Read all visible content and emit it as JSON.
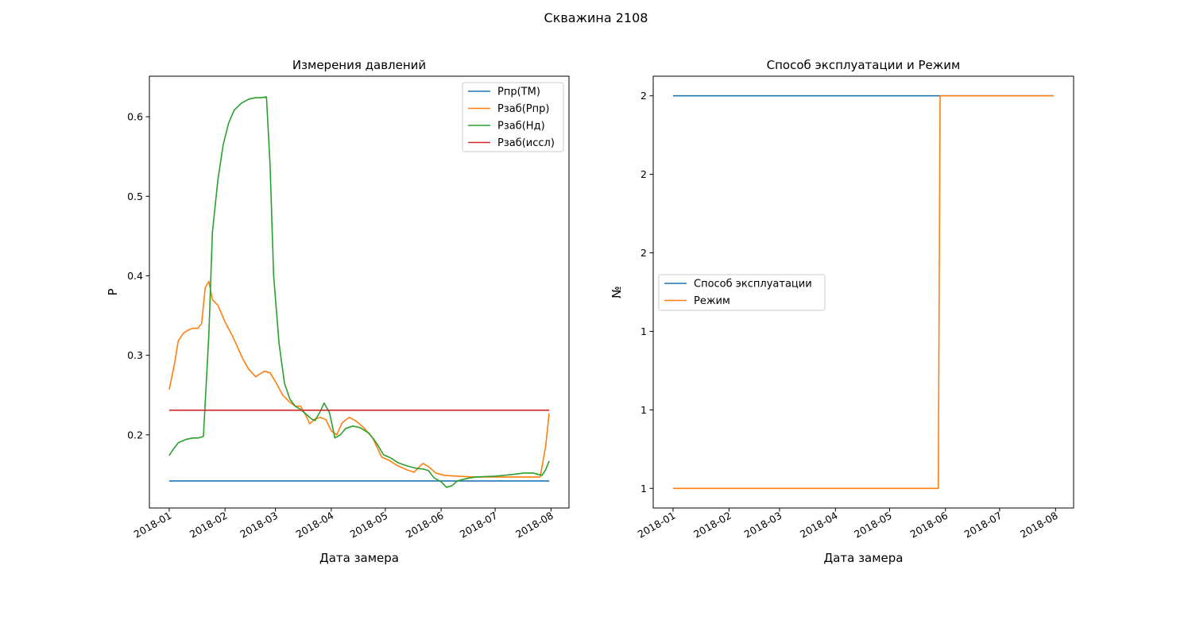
{
  "figure": {
    "suptitle": "Скважина 2108"
  },
  "chart_data": [
    {
      "type": "line",
      "title": "Измерения давлений",
      "xlabel": "Дата замера",
      "ylabel": "P",
      "x_type": "date",
      "xlim": [
        "2017-12-21",
        "2018-08-11"
      ],
      "ylim": [
        0.108,
        0.651
      ],
      "xticks": [
        "2018-01-01",
        "2018-02-01",
        "2018-03-01",
        "2018-04-01",
        "2018-05-01",
        "2018-06-01",
        "2018-07-01",
        "2018-08-01"
      ],
      "xtick_labels": [
        "2018-01",
        "2018-02",
        "2018-03",
        "2018-04",
        "2018-05",
        "2018-06",
        "2018-07",
        "2018-08"
      ],
      "yticks": [
        0.2,
        0.3,
        0.4,
        0.5,
        0.6
      ],
      "ytick_labels": [
        "0.2",
        "0.3",
        "0.4",
        "0.5",
        "0.6"
      ],
      "legend": "top-right",
      "grid": false,
      "series": [
        {
          "name": "Рпр(ТМ)",
          "color": "#1f77b4",
          "points": [
            [
              "2018-01-01",
              0.142
            ],
            [
              "2018-07-31",
              0.142
            ]
          ]
        },
        {
          "name": "Рзаб(Рпр)",
          "color": "#ff7f0e",
          "points": [
            [
              "2018-01-01",
              0.257
            ],
            [
              "2018-01-04",
              0.29
            ],
            [
              "2018-01-06",
              0.318
            ],
            [
              "2018-01-09",
              0.328
            ],
            [
              "2018-01-11",
              0.331
            ],
            [
              "2018-01-14",
              0.334
            ],
            [
              "2018-01-17",
              0.334
            ],
            [
              "2018-01-19",
              0.34
            ],
            [
              "2018-01-21",
              0.385
            ],
            [
              "2018-01-23",
              0.393
            ],
            [
              "2018-01-25",
              0.37
            ],
            [
              "2018-01-28",
              0.363
            ],
            [
              "2018-02-01",
              0.342
            ],
            [
              "2018-02-05",
              0.325
            ],
            [
              "2018-02-08",
              0.31
            ],
            [
              "2018-02-11",
              0.295
            ],
            [
              "2018-02-14",
              0.283
            ],
            [
              "2018-02-18",
              0.273
            ],
            [
              "2018-02-20",
              0.276
            ],
            [
              "2018-02-23",
              0.28
            ],
            [
              "2018-02-26",
              0.278
            ],
            [
              "2018-03-01",
              0.267
            ],
            [
              "2018-03-05",
              0.25
            ],
            [
              "2018-03-09",
              0.241
            ],
            [
              "2018-03-12",
              0.236
            ],
            [
              "2018-03-15",
              0.236
            ],
            [
              "2018-03-18",
              0.224
            ],
            [
              "2018-03-20",
              0.214
            ],
            [
              "2018-03-23",
              0.22
            ],
            [
              "2018-03-26",
              0.222
            ],
            [
              "2018-03-29",
              0.219
            ],
            [
              "2018-04-01",
              0.205
            ],
            [
              "2018-04-04",
              0.2
            ],
            [
              "2018-04-07",
              0.215
            ],
            [
              "2018-04-11",
              0.222
            ],
            [
              "2018-04-15",
              0.217
            ],
            [
              "2018-04-19",
              0.209
            ],
            [
              "2018-04-24",
              0.196
            ],
            [
              "2018-04-29",
              0.172
            ],
            [
              "2018-05-03",
              0.168
            ],
            [
              "2018-05-08",
              0.161
            ],
            [
              "2018-05-13",
              0.156
            ],
            [
              "2018-05-17",
              0.153
            ],
            [
              "2018-05-20",
              0.16
            ],
            [
              "2018-05-22",
              0.164
            ],
            [
              "2018-05-25",
              0.16
            ],
            [
              "2018-05-29",
              0.152
            ],
            [
              "2018-06-03",
              0.149
            ],
            [
              "2018-06-10",
              0.148
            ],
            [
              "2018-06-20",
              0.147
            ],
            [
              "2018-07-01",
              0.147
            ],
            [
              "2018-07-15",
              0.147
            ],
            [
              "2018-07-26",
              0.147
            ],
            [
              "2018-07-29",
              0.185
            ],
            [
              "2018-07-31",
              0.227
            ]
          ]
        },
        {
          "name": "Рзаб(Нд)",
          "color": "#2ca02c",
          "points": [
            [
              "2018-01-01",
              0.174
            ],
            [
              "2018-01-03",
              0.181
            ],
            [
              "2018-01-06",
              0.19
            ],
            [
              "2018-01-10",
              0.194
            ],
            [
              "2018-01-14",
              0.196
            ],
            [
              "2018-01-17",
              0.196
            ],
            [
              "2018-01-20",
              0.198
            ],
            [
              "2018-01-23",
              0.325
            ],
            [
              "2018-01-25",
              0.455
            ],
            [
              "2018-01-28",
              0.52
            ],
            [
              "2018-01-31",
              0.565
            ],
            [
              "2018-02-03",
              0.592
            ],
            [
              "2018-02-06",
              0.608
            ],
            [
              "2018-02-10",
              0.617
            ],
            [
              "2018-02-14",
              0.622
            ],
            [
              "2018-02-18",
              0.624
            ],
            [
              "2018-02-21",
              0.624
            ],
            [
              "2018-02-24",
              0.625
            ],
            [
              "2018-02-26",
              0.54
            ],
            [
              "2018-02-28",
              0.4
            ],
            [
              "2018-03-03",
              0.315
            ],
            [
              "2018-03-06",
              0.265
            ],
            [
              "2018-03-09",
              0.245
            ],
            [
              "2018-03-12",
              0.236
            ],
            [
              "2018-03-15",
              0.232
            ],
            [
              "2018-03-18",
              0.226
            ],
            [
              "2018-03-21",
              0.22
            ],
            [
              "2018-03-23",
              0.218
            ],
            [
              "2018-03-26",
              0.23
            ],
            [
              "2018-03-28",
              0.24
            ],
            [
              "2018-03-31",
              0.228
            ],
            [
              "2018-04-03",
              0.196
            ],
            [
              "2018-04-06",
              0.2
            ],
            [
              "2018-04-09",
              0.208
            ],
            [
              "2018-04-13",
              0.211
            ],
            [
              "2018-04-17",
              0.209
            ],
            [
              "2018-04-22",
              0.202
            ],
            [
              "2018-04-26",
              0.19
            ],
            [
              "2018-04-30",
              0.175
            ],
            [
              "2018-05-04",
              0.171
            ],
            [
              "2018-05-08",
              0.165
            ],
            [
              "2018-05-13",
              0.161
            ],
            [
              "2018-05-18",
              0.158
            ],
            [
              "2018-05-22",
              0.157
            ],
            [
              "2018-05-25",
              0.155
            ],
            [
              "2018-05-28",
              0.146
            ],
            [
              "2018-06-01",
              0.141
            ],
            [
              "2018-06-04",
              0.134
            ],
            [
              "2018-06-07",
              0.136
            ],
            [
              "2018-06-10",
              0.142
            ],
            [
              "2018-06-15",
              0.145
            ],
            [
              "2018-06-20",
              0.147
            ],
            [
              "2018-07-01",
              0.148
            ],
            [
              "2018-07-10",
              0.15
            ],
            [
              "2018-07-17",
              0.152
            ],
            [
              "2018-07-22",
              0.152
            ],
            [
              "2018-07-27",
              0.149
            ],
            [
              "2018-07-29",
              0.156
            ],
            [
              "2018-07-31",
              0.167
            ]
          ]
        },
        {
          "name": "Рзаб(иссл)",
          "color": "#d62728",
          "points": [
            [
              "2018-01-01",
              0.231
            ],
            [
              "2018-07-31",
              0.231
            ]
          ]
        }
      ]
    },
    {
      "type": "line",
      "title": "Способ эксплуатации и Режим",
      "xlabel": "Дата замера",
      "ylabel": "№",
      "x_type": "date",
      "xlim": [
        "2017-12-21",
        "2018-08-11"
      ],
      "ylim": [
        0.95,
        2.05
      ],
      "xticks": [
        "2018-01-01",
        "2018-02-01",
        "2018-03-01",
        "2018-04-01",
        "2018-05-01",
        "2018-06-01",
        "2018-07-01",
        "2018-08-01"
      ],
      "xtick_labels": [
        "2018-01",
        "2018-02",
        "2018-03",
        "2018-04",
        "2018-05",
        "2018-06",
        "2018-07",
        "2018-08"
      ],
      "yticks": [
        1.0,
        1.2,
        1.4,
        1.6,
        1.8,
        2.0
      ],
      "ytick_labels": [
        "1",
        "1",
        "1",
        "2",
        "2",
        "2"
      ],
      "legend": "center-left",
      "grid": false,
      "series": [
        {
          "name": "Способ эксплуатации",
          "color": "#1f77b4",
          "points": [
            [
              "2018-01-01",
              2
            ],
            [
              "2018-07-31",
              2
            ]
          ]
        },
        {
          "name": "Режим",
          "color": "#ff7f0e",
          "points": [
            [
              "2018-01-01",
              1
            ],
            [
              "2018-05-28",
              1
            ],
            [
              "2018-05-29",
              2
            ],
            [
              "2018-07-31",
              2
            ]
          ]
        }
      ]
    }
  ]
}
